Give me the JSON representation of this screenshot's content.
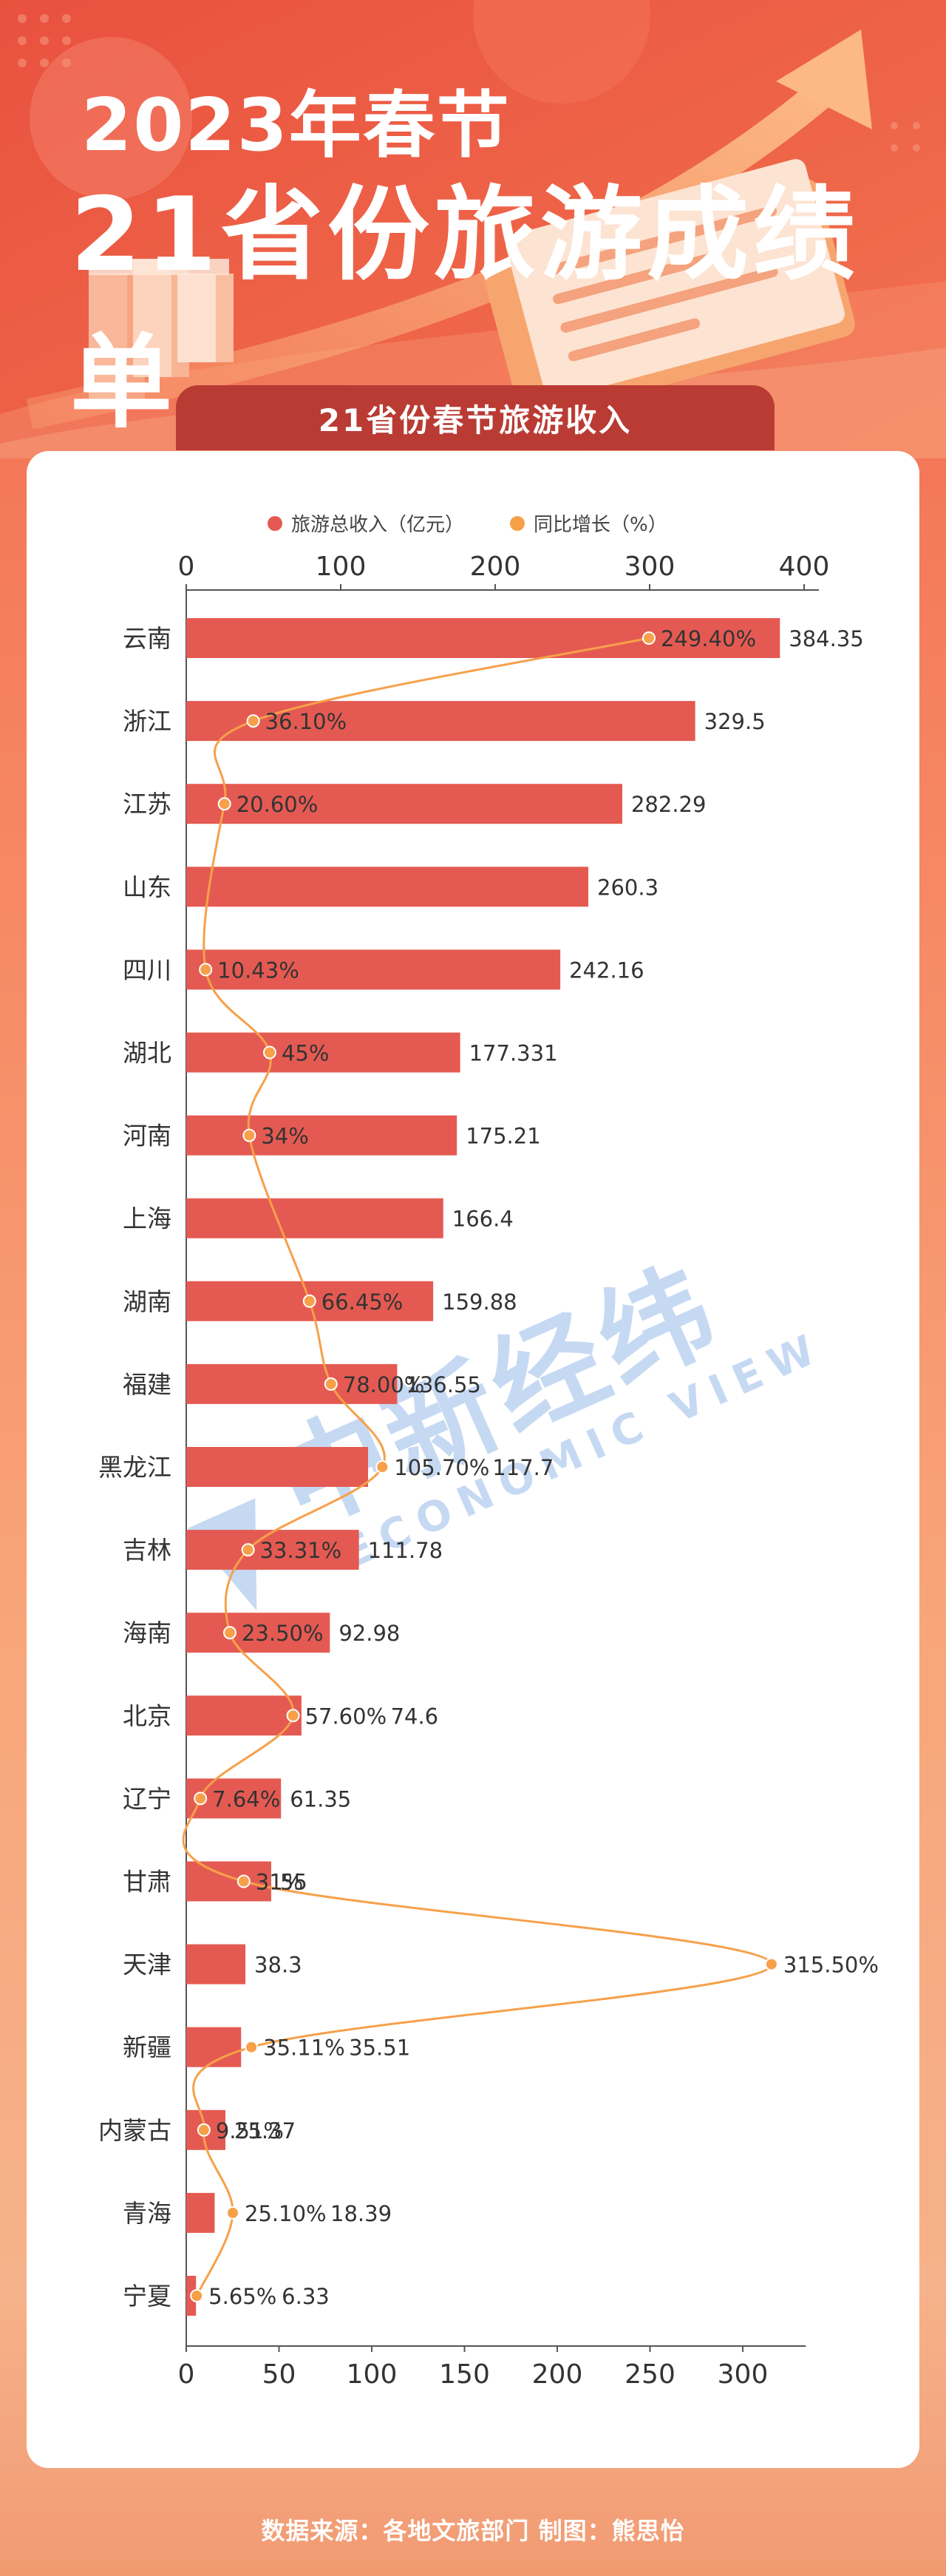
{
  "header": {
    "title_line1": "2023年春节",
    "title_line2": "21省份旅游成绩单",
    "chart_heading": "21省份春节旅游收入"
  },
  "footer": {
    "source": "数据来源：各地文旅部门  制图：熊思怡"
  },
  "watermark": {
    "brand_cn": "中新经纬",
    "brand_en": "ECONOMIC VIEW"
  },
  "colors": {
    "bar": "#e45a52",
    "line": "#f7a04a",
    "ribbon": "#b93b34",
    "background_top": "#f0644a",
    "watermark": "#8fb4e8"
  },
  "chart_data": {
    "type": "bar",
    "orientation": "horizontal",
    "title": "21省份春节旅游收入",
    "categories": [
      "云南",
      "浙江",
      "江苏",
      "山东",
      "四川",
      "湖北",
      "河南",
      "上海",
      "湖南",
      "福建",
      "黑龙江",
      "吉林",
      "海南",
      "北京",
      "辽宁",
      "甘肃",
      "天津",
      "新疆",
      "内蒙古",
      "青海",
      "宁夏"
    ],
    "series": [
      {
        "name": "旅游总收入（亿元）",
        "type": "bar",
        "axis": "top",
        "values": [
          384.35,
          329.5,
          282.29,
          260.3,
          242.16,
          177.331,
          175.21,
          166.4,
          159.88,
          136.55,
          117.7,
          111.78,
          92.98,
          74.6,
          61.35,
          55,
          38.3,
          35.51,
          25.37,
          18.39,
          6.33
        ],
        "labels": [
          "384.35",
          "329.5",
          "282.29",
          "260.3",
          "242.16",
          "177.331",
          "175.21",
          "166.4",
          "159.88",
          "136.55",
          "117.7",
          "111.78",
          "92.98",
          "74.6",
          "61.35",
          "55",
          "38.3",
          "35.51",
          "25.37",
          "18.39",
          "6.33"
        ]
      },
      {
        "name": "同比增长（%）",
        "type": "line",
        "axis": "bottom",
        "values": [
          249.4,
          36.1,
          20.6,
          null,
          10.43,
          45,
          34,
          null,
          66.45,
          78.0,
          105.7,
          33.31,
          23.5,
          57.6,
          7.64,
          31,
          315.5,
          35.11,
          9.51,
          25.1,
          5.65
        ],
        "labels": [
          "249.40%",
          "36.10%",
          "20.60%",
          "",
          "10.43%",
          "45%",
          "34%",
          "",
          "66.45%",
          "78.00%",
          "105.70%",
          "33.31%",
          "23.50%",
          "57.60%",
          "7.64%",
          "31%",
          "315.50%",
          "35.11%",
          "9.51%",
          "25.10%",
          "5.65%"
        ]
      }
    ],
    "top_axis": {
      "min": 0,
      "max": 400,
      "ticks": [
        "0",
        "100",
        "200",
        "300",
        "400"
      ]
    },
    "bottom_axis": {
      "min": 0,
      "max": 330,
      "ticks": [
        "0",
        "50",
        "100",
        "150",
        "200",
        "250",
        "300"
      ]
    },
    "legend_position": "top-center",
    "grid": false
  }
}
